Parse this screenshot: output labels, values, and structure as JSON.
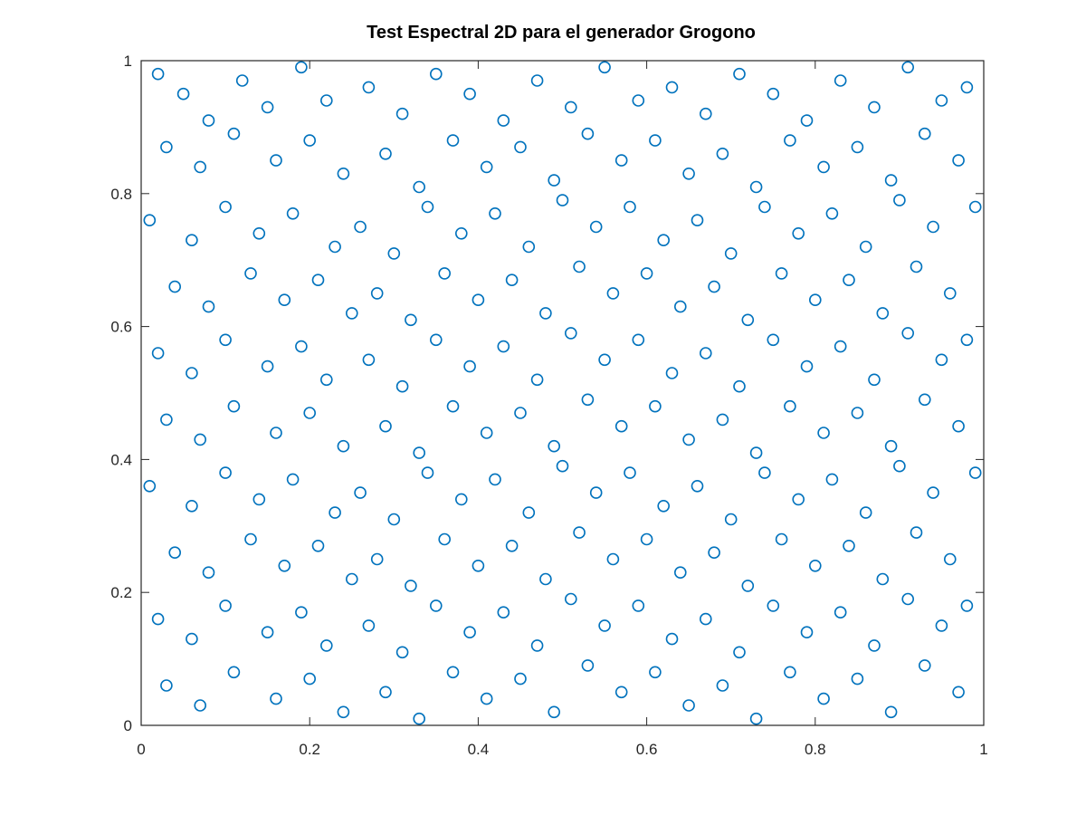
{
  "chart_data": {
    "type": "scatter",
    "title": "Test Espectral 2D para el generador Grogono",
    "xlabel": "",
    "ylabel": "",
    "xlim": [
      0,
      1
    ],
    "ylim": [
      0,
      1
    ],
    "x_ticks": [
      "0",
      "0.2",
      "0.4",
      "0.6",
      "0.8",
      "1"
    ],
    "y_ticks": [
      "0",
      "0.2",
      "0.4",
      "0.6",
      "0.8",
      "1"
    ],
    "grid": false,
    "legend": "none",
    "marker": "circle-open",
    "marker_color": "#0072bd",
    "series": [
      {
        "points": [
          [
            0.02,
            0.98
          ],
          [
            0.05,
            0.95
          ],
          [
            0.08,
            0.91
          ],
          [
            0.12,
            0.97
          ],
          [
            0.15,
            0.93
          ],
          [
            0.19,
            0.99
          ],
          [
            0.22,
            0.94
          ],
          [
            0.27,
            0.96
          ],
          [
            0.31,
            0.92
          ],
          [
            0.35,
            0.98
          ],
          [
            0.39,
            0.95
          ],
          [
            0.43,
            0.91
          ],
          [
            0.47,
            0.97
          ],
          [
            0.51,
            0.93
          ],
          [
            0.55,
            0.99
          ],
          [
            0.59,
            0.94
          ],
          [
            0.63,
            0.96
          ],
          [
            0.67,
            0.92
          ],
          [
            0.71,
            0.98
          ],
          [
            0.75,
            0.95
          ],
          [
            0.79,
            0.91
          ],
          [
            0.83,
            0.97
          ],
          [
            0.87,
            0.93
          ],
          [
            0.91,
            0.99
          ],
          [
            0.95,
            0.94
          ],
          [
            0.98,
            0.96
          ],
          [
            0.03,
            0.87
          ],
          [
            0.07,
            0.84
          ],
          [
            0.11,
            0.89
          ],
          [
            0.16,
            0.85
          ],
          [
            0.2,
            0.88
          ],
          [
            0.24,
            0.83
          ],
          [
            0.29,
            0.86
          ],
          [
            0.33,
            0.81
          ],
          [
            0.37,
            0.88
          ],
          [
            0.41,
            0.84
          ],
          [
            0.45,
            0.87
          ],
          [
            0.49,
            0.82
          ],
          [
            0.53,
            0.89
          ],
          [
            0.57,
            0.85
          ],
          [
            0.61,
            0.88
          ],
          [
            0.65,
            0.83
          ],
          [
            0.69,
            0.86
          ],
          [
            0.73,
            0.81
          ],
          [
            0.77,
            0.88
          ],
          [
            0.81,
            0.84
          ],
          [
            0.85,
            0.87
          ],
          [
            0.89,
            0.82
          ],
          [
            0.93,
            0.89
          ],
          [
            0.97,
            0.85
          ],
          [
            0.01,
            0.76
          ],
          [
            0.06,
            0.73
          ],
          [
            0.1,
            0.78
          ],
          [
            0.14,
            0.74
          ],
          [
            0.18,
            0.77
          ],
          [
            0.23,
            0.72
          ],
          [
            0.26,
            0.75
          ],
          [
            0.3,
            0.71
          ],
          [
            0.34,
            0.78
          ],
          [
            0.38,
            0.74
          ],
          [
            0.42,
            0.77
          ],
          [
            0.46,
            0.72
          ],
          [
            0.5,
            0.79
          ],
          [
            0.54,
            0.75
          ],
          [
            0.58,
            0.78
          ],
          [
            0.62,
            0.73
          ],
          [
            0.66,
            0.76
          ],
          [
            0.7,
            0.71
          ],
          [
            0.74,
            0.78
          ],
          [
            0.78,
            0.74
          ],
          [
            0.82,
            0.77
          ],
          [
            0.86,
            0.72
          ],
          [
            0.9,
            0.79
          ],
          [
            0.94,
            0.75
          ],
          [
            0.99,
            0.78
          ],
          [
            0.04,
            0.66
          ],
          [
            0.08,
            0.63
          ],
          [
            0.13,
            0.68
          ],
          [
            0.17,
            0.64
          ],
          [
            0.21,
            0.67
          ],
          [
            0.25,
            0.62
          ],
          [
            0.28,
            0.65
          ],
          [
            0.32,
            0.61
          ],
          [
            0.36,
            0.68
          ],
          [
            0.4,
            0.64
          ],
          [
            0.44,
            0.67
          ],
          [
            0.48,
            0.62
          ],
          [
            0.52,
            0.69
          ],
          [
            0.56,
            0.65
          ],
          [
            0.6,
            0.68
          ],
          [
            0.64,
            0.63
          ],
          [
            0.68,
            0.66
          ],
          [
            0.72,
            0.61
          ],
          [
            0.76,
            0.68
          ],
          [
            0.8,
            0.64
          ],
          [
            0.84,
            0.67
          ],
          [
            0.88,
            0.62
          ],
          [
            0.92,
            0.69
          ],
          [
            0.96,
            0.65
          ],
          [
            0.02,
            0.56
          ],
          [
            0.06,
            0.53
          ],
          [
            0.1,
            0.58
          ],
          [
            0.15,
            0.54
          ],
          [
            0.19,
            0.57
          ],
          [
            0.22,
            0.52
          ],
          [
            0.27,
            0.55
          ],
          [
            0.31,
            0.51
          ],
          [
            0.35,
            0.58
          ],
          [
            0.39,
            0.54
          ],
          [
            0.43,
            0.57
          ],
          [
            0.47,
            0.52
          ],
          [
            0.51,
            0.59
          ],
          [
            0.55,
            0.55
          ],
          [
            0.59,
            0.58
          ],
          [
            0.63,
            0.53
          ],
          [
            0.67,
            0.56
          ],
          [
            0.71,
            0.51
          ],
          [
            0.75,
            0.58
          ],
          [
            0.79,
            0.54
          ],
          [
            0.83,
            0.57
          ],
          [
            0.87,
            0.52
          ],
          [
            0.91,
            0.59
          ],
          [
            0.95,
            0.55
          ],
          [
            0.98,
            0.58
          ],
          [
            0.03,
            0.46
          ],
          [
            0.07,
            0.43
          ],
          [
            0.11,
            0.48
          ],
          [
            0.16,
            0.44
          ],
          [
            0.2,
            0.47
          ],
          [
            0.24,
            0.42
          ],
          [
            0.29,
            0.45
          ],
          [
            0.33,
            0.41
          ],
          [
            0.37,
            0.48
          ],
          [
            0.41,
            0.44
          ],
          [
            0.45,
            0.47
          ],
          [
            0.49,
            0.42
          ],
          [
            0.53,
            0.49
          ],
          [
            0.57,
            0.45
          ],
          [
            0.61,
            0.48
          ],
          [
            0.65,
            0.43
          ],
          [
            0.69,
            0.46
          ],
          [
            0.73,
            0.41
          ],
          [
            0.77,
            0.48
          ],
          [
            0.81,
            0.44
          ],
          [
            0.85,
            0.47
          ],
          [
            0.89,
            0.42
          ],
          [
            0.93,
            0.49
          ],
          [
            0.97,
            0.45
          ],
          [
            0.01,
            0.36
          ],
          [
            0.06,
            0.33
          ],
          [
            0.1,
            0.38
          ],
          [
            0.14,
            0.34
          ],
          [
            0.18,
            0.37
          ],
          [
            0.23,
            0.32
          ],
          [
            0.26,
            0.35
          ],
          [
            0.3,
            0.31
          ],
          [
            0.34,
            0.38
          ],
          [
            0.38,
            0.34
          ],
          [
            0.42,
            0.37
          ],
          [
            0.46,
            0.32
          ],
          [
            0.5,
            0.39
          ],
          [
            0.54,
            0.35
          ],
          [
            0.58,
            0.38
          ],
          [
            0.62,
            0.33
          ],
          [
            0.66,
            0.36
          ],
          [
            0.7,
            0.31
          ],
          [
            0.74,
            0.38
          ],
          [
            0.78,
            0.34
          ],
          [
            0.82,
            0.37
          ],
          [
            0.86,
            0.32
          ],
          [
            0.9,
            0.39
          ],
          [
            0.94,
            0.35
          ],
          [
            0.99,
            0.38
          ],
          [
            0.04,
            0.26
          ],
          [
            0.08,
            0.23
          ],
          [
            0.13,
            0.28
          ],
          [
            0.17,
            0.24
          ],
          [
            0.21,
            0.27
          ],
          [
            0.25,
            0.22
          ],
          [
            0.28,
            0.25
          ],
          [
            0.32,
            0.21
          ],
          [
            0.36,
            0.28
          ],
          [
            0.4,
            0.24
          ],
          [
            0.44,
            0.27
          ],
          [
            0.48,
            0.22
          ],
          [
            0.52,
            0.29
          ],
          [
            0.56,
            0.25
          ],
          [
            0.6,
            0.28
          ],
          [
            0.64,
            0.23
          ],
          [
            0.68,
            0.26
          ],
          [
            0.72,
            0.21
          ],
          [
            0.76,
            0.28
          ],
          [
            0.8,
            0.24
          ],
          [
            0.84,
            0.27
          ],
          [
            0.88,
            0.22
          ],
          [
            0.92,
            0.29
          ],
          [
            0.96,
            0.25
          ],
          [
            0.02,
            0.16
          ],
          [
            0.06,
            0.13
          ],
          [
            0.1,
            0.18
          ],
          [
            0.15,
            0.14
          ],
          [
            0.19,
            0.17
          ],
          [
            0.22,
            0.12
          ],
          [
            0.27,
            0.15
          ],
          [
            0.31,
            0.11
          ],
          [
            0.35,
            0.18
          ],
          [
            0.39,
            0.14
          ],
          [
            0.43,
            0.17
          ],
          [
            0.47,
            0.12
          ],
          [
            0.51,
            0.19
          ],
          [
            0.55,
            0.15
          ],
          [
            0.59,
            0.18
          ],
          [
            0.63,
            0.13
          ],
          [
            0.67,
            0.16
          ],
          [
            0.71,
            0.11
          ],
          [
            0.75,
            0.18
          ],
          [
            0.79,
            0.14
          ],
          [
            0.83,
            0.17
          ],
          [
            0.87,
            0.12
          ],
          [
            0.91,
            0.19
          ],
          [
            0.95,
            0.15
          ],
          [
            0.98,
            0.18
          ],
          [
            0.03,
            0.06
          ],
          [
            0.07,
            0.03
          ],
          [
            0.11,
            0.08
          ],
          [
            0.16,
            0.04
          ],
          [
            0.2,
            0.07
          ],
          [
            0.24,
            0.02
          ],
          [
            0.29,
            0.05
          ],
          [
            0.33,
            0.01
          ],
          [
            0.37,
            0.08
          ],
          [
            0.41,
            0.04
          ],
          [
            0.45,
            0.07
          ],
          [
            0.49,
            0.02
          ],
          [
            0.53,
            0.09
          ],
          [
            0.57,
            0.05
          ],
          [
            0.61,
            0.08
          ],
          [
            0.65,
            0.03
          ],
          [
            0.69,
            0.06
          ],
          [
            0.73,
            0.01
          ],
          [
            0.77,
            0.08
          ],
          [
            0.81,
            0.04
          ],
          [
            0.85,
            0.07
          ],
          [
            0.89,
            0.02
          ],
          [
            0.93,
            0.09
          ],
          [
            0.97,
            0.05
          ]
        ]
      }
    ]
  }
}
